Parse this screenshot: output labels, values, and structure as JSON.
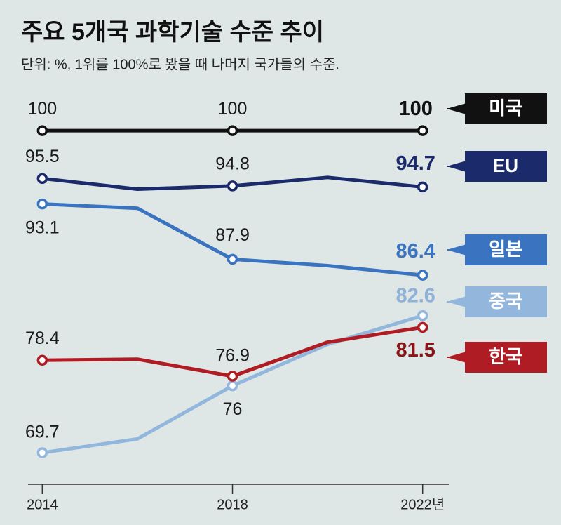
{
  "chart_data": {
    "type": "line",
    "title": "주요 5개국 과학기술 수준 추이",
    "subtitle": "단위: %, 1위를 100%로 봤을 때 나머지 국가들의 수준.",
    "x": [
      2014,
      2016,
      2018,
      2020,
      2022
    ],
    "xlim": [
      2013.7,
      2022.55
    ],
    "xticks": [
      2014,
      2018,
      {
        "value": 2022,
        "label": "2022년"
      }
    ],
    "ylim": [
      66.5,
      101.2
    ],
    "series": [
      {
        "name": "미국",
        "color": "#111111",
        "values": [
          100,
          100,
          100,
          100,
          100
        ]
      },
      {
        "name": "EU",
        "color": "#1b2a6b",
        "values": [
          95.5,
          94.5,
          94.8,
          95.6,
          94.7
        ]
      },
      {
        "name": "일본",
        "color": "#3a74c0",
        "values": [
          93.1,
          92.7,
          87.9,
          87.3,
          86.4
        ]
      },
      {
        "name": "중국",
        "color": "#92b6dc",
        "values": [
          69.7,
          71.0,
          76,
          79.9,
          82.6
        ]
      },
      {
        "name": "한국",
        "color": "#b01c24",
        "values": [
          78.4,
          78.5,
          76.9,
          80.1,
          81.5
        ]
      }
    ]
  }
}
